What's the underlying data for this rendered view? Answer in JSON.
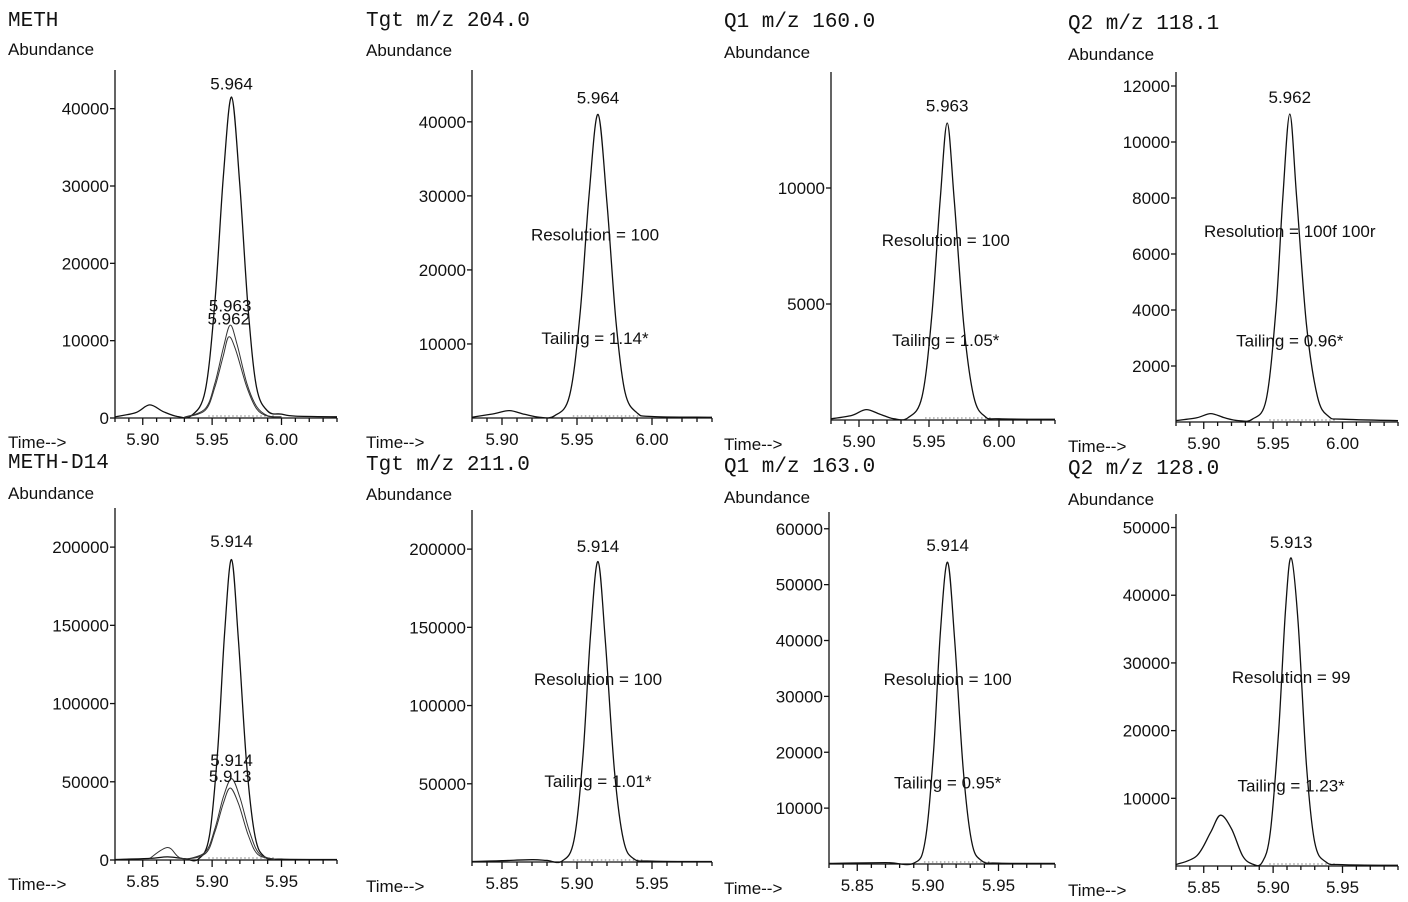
{
  "chart_data": [
    {
      "type": "line",
      "title": "METH",
      "ylabel": "Abundance",
      "xlabel": "Time-->",
      "xlim": [
        5.88,
        6.04
      ],
      "ylim": [
        0,
        45000
      ],
      "xticks": [
        5.9,
        5.95,
        6.0
      ],
      "xtick_labels": [
        "5.90",
        "5.95",
        "6.00"
      ],
      "yticks": [
        0,
        10000,
        20000,
        30000,
        40000
      ],
      "ytick_labels": [
        "0",
        "10000",
        "20000",
        "30000",
        "40000"
      ],
      "series": [
        {
          "values": [
            [
              5.88,
              150
            ],
            [
              5.895,
              700
            ],
            [
              5.905,
              1700
            ],
            [
              5.915,
              800
            ],
            [
              5.925,
              200
            ],
            [
              5.935,
              300
            ],
            [
              5.945,
              3500
            ],
            [
              5.952,
              15000
            ],
            [
              5.958,
              31000
            ],
            [
              5.964,
              41500
            ],
            [
              5.97,
              30000
            ],
            [
              5.976,
              14000
            ],
            [
              5.982,
              4000
            ],
            [
              5.99,
              900
            ],
            [
              6.0,
              500
            ],
            [
              6.01,
              250
            ],
            [
              6.04,
              150
            ]
          ]
        },
        {
          "values": [
            [
              5.93,
              100
            ],
            [
              5.945,
              1200
            ],
            [
              5.952,
              4500
            ],
            [
              5.958,
              9000
            ],
            [
              5.963,
              12000
            ],
            [
              5.968,
              9500
            ],
            [
              5.975,
              4500
            ],
            [
              5.982,
              1500
            ],
            [
              5.99,
              300
            ],
            [
              6.0,
              150
            ]
          ]
        },
        {
          "values": [
            [
              5.93,
              100
            ],
            [
              5.945,
              1000
            ],
            [
              5.952,
              4000
            ],
            [
              5.958,
              8000
            ],
            [
              5.962,
              10500
            ],
            [
              5.967,
              8800
            ],
            [
              5.975,
              4000
            ],
            [
              5.982,
              1200
            ],
            [
              5.99,
              250
            ],
            [
              6.0,
              100
            ]
          ]
        }
      ],
      "annotations": [
        {
          "text": "5.964",
          "x": 5.964,
          "y": 42500
        },
        {
          "text": "5.963",
          "x": 5.963,
          "y": 13800
        },
        {
          "text": "5.962",
          "x": 5.962,
          "y": 12100
        }
      ],
      "grid": false
    },
    {
      "type": "line",
      "title": "Tgt m/z 204.0",
      "ylabel": "Abundance",
      "xlabel": "Time-->",
      "xlim": [
        5.88,
        6.04
      ],
      "ylim": [
        0,
        47000
      ],
      "xticks": [
        5.9,
        5.95,
        6.0
      ],
      "xtick_labels": [
        "5.90",
        "5.95",
        "6.00"
      ],
      "yticks": [
        10000,
        20000,
        30000,
        40000
      ],
      "ytick_labels": [
        "10000",
        "20000",
        "30000",
        "40000"
      ],
      "series": [
        {
          "values": [
            [
              5.88,
              100
            ],
            [
              5.895,
              600
            ],
            [
              5.905,
              1000
            ],
            [
              5.915,
              500
            ],
            [
              5.925,
              100
            ],
            [
              5.935,
              300
            ],
            [
              5.945,
              3000
            ],
            [
              5.952,
              14000
            ],
            [
              5.958,
              30000
            ],
            [
              5.964,
              41000
            ],
            [
              5.97,
              29000
            ],
            [
              5.976,
              13000
            ],
            [
              5.982,
              3500
            ],
            [
              5.99,
              700
            ],
            [
              6.0,
              200
            ],
            [
              6.04,
              100
            ]
          ]
        }
      ],
      "annotations": [
        {
          "text": "5.964",
          "x": 5.964,
          "y": 42500
        },
        {
          "text": "Resolution = 100",
          "x": 5.962,
          "y": 24000
        },
        {
          "text": "Tailing = 1.14*",
          "x": 5.962,
          "y": 10000
        }
      ],
      "grid": false
    },
    {
      "type": "line",
      "title": "Q1 m/z 160.0",
      "ylabel": "Abundance",
      "xlabel": "Time-->",
      "xlim": [
        5.88,
        6.04
      ],
      "ylim": [
        0,
        15000
      ],
      "xticks": [
        5.9,
        5.95,
        6.0
      ],
      "xtick_labels": [
        "5.90",
        "5.95",
        "6.00"
      ],
      "yticks": [
        5000,
        10000
      ],
      "ytick_labels": [
        "5000",
        "10000"
      ],
      "series": [
        {
          "values": [
            [
              5.88,
              50
            ],
            [
              5.895,
              200
            ],
            [
              5.905,
              450
            ],
            [
              5.915,
              250
            ],
            [
              5.925,
              50
            ],
            [
              5.935,
              100
            ],
            [
              5.945,
              1000
            ],
            [
              5.952,
              4500
            ],
            [
              5.958,
              9500
            ],
            [
              5.963,
              12800
            ],
            [
              5.968,
              9500
            ],
            [
              5.975,
              4000
            ],
            [
              5.982,
              1000
            ],
            [
              5.99,
              150
            ],
            [
              6.0,
              50
            ],
            [
              6.04,
              30
            ]
          ]
        }
      ],
      "annotations": [
        {
          "text": "5.963",
          "x": 5.963,
          "y": 13300
        },
        {
          "text": "Resolution = 100",
          "x": 5.962,
          "y": 7500
        },
        {
          "text": "Tailing = 1.05*",
          "x": 5.962,
          "y": 3200
        }
      ],
      "grid": false
    },
    {
      "type": "line",
      "title": "Q2 m/z 118.1",
      "ylabel": "Abundance",
      "xlabel": "Time-->",
      "xlim": [
        5.88,
        6.04
      ],
      "ylim": [
        0,
        12500
      ],
      "xticks": [
        5.9,
        5.95,
        6.0
      ],
      "xtick_labels": [
        "5.90",
        "5.95",
        "6.00"
      ],
      "yticks": [
        2000,
        4000,
        6000,
        8000,
        10000,
        12000
      ],
      "ytick_labels": [
        "2000",
        "4000",
        "6000",
        "8000",
        "10000",
        "12000"
      ],
      "series": [
        {
          "values": [
            [
              5.88,
              50
            ],
            [
              5.895,
              150
            ],
            [
              5.905,
              300
            ],
            [
              5.915,
              150
            ],
            [
              5.925,
              50
            ],
            [
              5.935,
              100
            ],
            [
              5.945,
              800
            ],
            [
              5.952,
              4000
            ],
            [
              5.957,
              8000
            ],
            [
              5.962,
              11000
            ],
            [
              5.967,
              8000
            ],
            [
              5.974,
              3500
            ],
            [
              5.982,
              900
            ],
            [
              5.99,
              200
            ],
            [
              6.0,
              100
            ],
            [
              6.04,
              50
            ]
          ]
        }
      ],
      "annotations": [
        {
          "text": "5.962",
          "x": 5.962,
          "y": 11400
        },
        {
          "text": "Resolution = 100f 100r",
          "x": 5.962,
          "y": 6600
        },
        {
          "text": "Tailing = 0.96*",
          "x": 5.962,
          "y": 2700
        }
      ],
      "grid": false
    },
    {
      "type": "line",
      "title": "METH-D14",
      "ylabel": "Abundance",
      "xlabel": "Time-->",
      "xlim": [
        5.83,
        5.99
      ],
      "ylim": [
        0,
        225000
      ],
      "xticks": [
        5.85,
        5.9,
        5.95
      ],
      "xtick_labels": [
        "5.85",
        "5.90",
        "5.95"
      ],
      "yticks": [
        0,
        50000,
        100000,
        150000,
        200000
      ],
      "ytick_labels": [
        "0",
        "50000",
        "100000",
        "150000",
        "200000"
      ],
      "series": [
        {
          "values": [
            [
              5.83,
              300
            ],
            [
              5.855,
              1000
            ],
            [
              5.868,
              2000
            ],
            [
              5.88,
              800
            ],
            [
              5.89,
              500
            ],
            [
              5.898,
              15000
            ],
            [
              5.904,
              70000
            ],
            [
              5.909,
              145000
            ],
            [
              5.914,
              192000
            ],
            [
              5.919,
              140000
            ],
            [
              5.925,
              60000
            ],
            [
              5.931,
              15000
            ],
            [
              5.938,
              2000
            ],
            [
              5.95,
              500
            ],
            [
              5.99,
              300
            ]
          ]
        },
        {
          "values": [
            [
              5.88,
              200
            ],
            [
              5.895,
              5000
            ],
            [
              5.902,
              20000
            ],
            [
              5.908,
              40000
            ],
            [
              5.914,
              52000
            ],
            [
              5.92,
              40000
            ],
            [
              5.927,
              18000
            ],
            [
              5.934,
              4000
            ],
            [
              5.945,
              500
            ]
          ]
        },
        {
          "values": [
            [
              5.855,
              1000
            ],
            [
              5.868,
              8000
            ],
            [
              5.878,
              1000
            ],
            [
              5.895,
              4000
            ],
            [
              5.902,
              18000
            ],
            [
              5.908,
              36000
            ],
            [
              5.913,
              46000
            ],
            [
              5.919,
              36000
            ],
            [
              5.926,
              16000
            ],
            [
              5.933,
              3500
            ],
            [
              5.945,
              400
            ]
          ]
        }
      ],
      "annotations": [
        {
          "text": "5.914",
          "x": 5.914,
          "y": 200000
        },
        {
          "text": "5.914",
          "x": 5.914,
          "y": 60000
        },
        {
          "text": "5.913",
          "x": 5.913,
          "y": 50000
        }
      ],
      "grid": false
    },
    {
      "type": "line",
      "title": "Tgt m/z 211.0",
      "ylabel": "Abundance",
      "xlabel": "Time-->",
      "xlim": [
        5.83,
        5.99
      ],
      "ylim": [
        0,
        225000
      ],
      "xticks": [
        5.85,
        5.9,
        5.95
      ],
      "xtick_labels": [
        "5.85",
        "5.90",
        "5.95"
      ],
      "yticks": [
        50000,
        100000,
        150000,
        200000
      ],
      "ytick_labels": [
        "50000",
        "100000",
        "150000",
        "200000"
      ],
      "series": [
        {
          "values": [
            [
              5.83,
              300
            ],
            [
              5.85,
              800
            ],
            [
              5.87,
              1500
            ],
            [
              5.88,
              1000
            ],
            [
              5.89,
              600
            ],
            [
              5.898,
              14000
            ],
            [
              5.904,
              68000
            ],
            [
              5.909,
              145000
            ],
            [
              5.914,
              192000
            ],
            [
              5.919,
              140000
            ],
            [
              5.925,
              58000
            ],
            [
              5.931,
              14000
            ],
            [
              5.938,
              2000
            ],
            [
              5.95,
              600
            ],
            [
              5.99,
              300
            ]
          ]
        }
      ],
      "annotations": [
        {
          "text": "5.914",
          "x": 5.914,
          "y": 198000
        },
        {
          "text": "Resolution = 100",
          "x": 5.914,
          "y": 113000
        },
        {
          "text": "Tailing = 1.01*",
          "x": 5.914,
          "y": 48000
        }
      ],
      "grid": false
    },
    {
      "type": "line",
      "title": "Q1 m/z 163.0",
      "ylabel": "Abundance",
      "xlabel": "Time-->",
      "xlim": [
        5.83,
        5.99
      ],
      "ylim": [
        0,
        63000
      ],
      "xticks": [
        5.85,
        5.9,
        5.95
      ],
      "xtick_labels": [
        "5.85",
        "5.90",
        "5.95"
      ],
      "yticks": [
        10000,
        20000,
        30000,
        40000,
        50000,
        60000
      ],
      "ytick_labels": [
        "10000",
        "20000",
        "30000",
        "40000",
        "50000",
        "60000"
      ],
      "series": [
        {
          "values": [
            [
              5.83,
              100
            ],
            [
              5.87,
              250
            ],
            [
              5.89,
              150
            ],
            [
              5.898,
              4000
            ],
            [
              5.904,
              20000
            ],
            [
              5.909,
              42000
            ],
            [
              5.914,
              54000
            ],
            [
              5.919,
              40000
            ],
            [
              5.925,
              17000
            ],
            [
              5.931,
              4000
            ],
            [
              5.938,
              600
            ],
            [
              5.95,
              150
            ],
            [
              5.99,
              100
            ]
          ]
        }
      ],
      "annotations": [
        {
          "text": "5.914",
          "x": 5.914,
          "y": 56000
        },
        {
          "text": "Resolution = 100",
          "x": 5.914,
          "y": 32000
        },
        {
          "text": "Tailing = 0.95*",
          "x": 5.914,
          "y": 13500
        }
      ],
      "grid": false
    },
    {
      "type": "line",
      "title": "Q2 m/z 128.0",
      "ylabel": "Abundance",
      "xlabel": "Time-->",
      "xlim": [
        5.83,
        5.99
      ],
      "ylim": [
        0,
        52000
      ],
      "xticks": [
        5.85,
        5.9,
        5.95
      ],
      "xtick_labels": [
        "5.85",
        "5.90",
        "5.95"
      ],
      "yticks": [
        10000,
        20000,
        30000,
        40000,
        50000
      ],
      "ytick_labels": [
        "10000",
        "20000",
        "30000",
        "40000",
        "50000"
      ],
      "series": [
        {
          "values": [
            [
              5.83,
              200
            ],
            [
              5.845,
              1500
            ],
            [
              5.855,
              5000
            ],
            [
              5.862,
              7500
            ],
            [
              5.87,
              5500
            ],
            [
              5.878,
              1500
            ],
            [
              5.885,
              300
            ],
            [
              5.892,
              500
            ],
            [
              5.898,
              5000
            ],
            [
              5.904,
              20000
            ],
            [
              5.909,
              38000
            ],
            [
              5.913,
              45500
            ],
            [
              5.918,
              36000
            ],
            [
              5.924,
              15000
            ],
            [
              5.93,
              3500
            ],
            [
              5.938,
              600
            ],
            [
              5.95,
              200
            ],
            [
              5.99,
              100
            ]
          ]
        }
      ],
      "annotations": [
        {
          "text": "5.913",
          "x": 5.913,
          "y": 47000
        },
        {
          "text": "Resolution = 99",
          "x": 5.913,
          "y": 27000
        },
        {
          "text": "Tailing = 1.23*",
          "x": 5.913,
          "y": 11000
        }
      ],
      "grid": false
    }
  ]
}
